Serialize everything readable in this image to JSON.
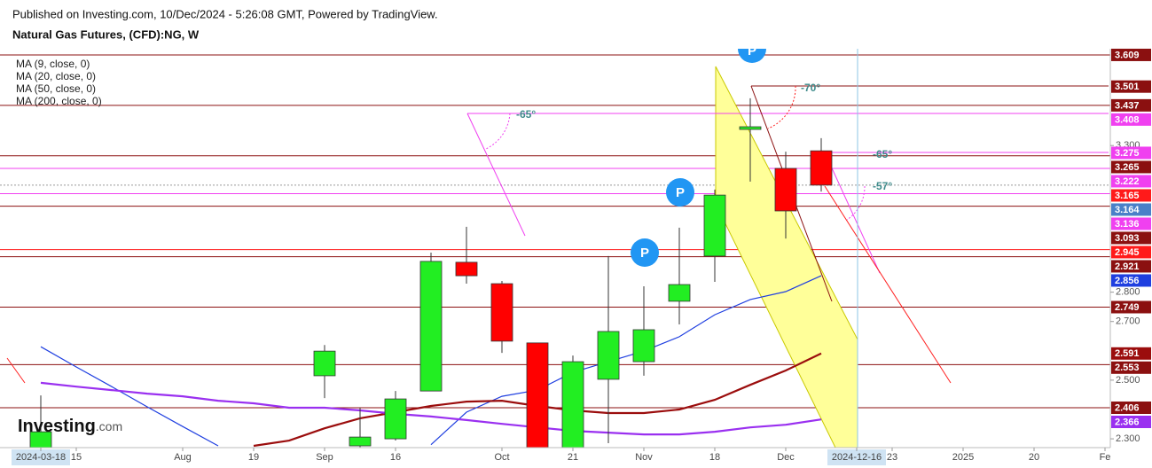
{
  "header": {
    "published": "Published on Investing.com, 10/Dec/2024 - 5:26:08 GMT, Powered by TradingView.",
    "symbol": "Natural Gas Futures, (CFD):NG, W"
  },
  "logo": {
    "name": "Investing",
    "suffix": ".com"
  },
  "annotations": [
    "-65°",
    "-70°",
    "-65°",
    "-57°"
  ],
  "markers": [
    "P",
    "P",
    "P"
  ],
  "chart_data": {
    "type": "candlestick",
    "categories": [
      "2024-03-18",
      "15",
      null,
      null,
      "Aug",
      null,
      "19",
      null,
      "Sep",
      null,
      "16",
      null,
      null,
      "Oct",
      null,
      "21",
      null,
      "Nov",
      null,
      "18",
      null,
      "Dec",
      null,
      "2024-12-16",
      "23",
      null,
      "2025",
      null,
      "20",
      null,
      "Fe"
    ],
    "highlight": [
      0,
      23
    ],
    "open": [
      2.25,
      null,
      null,
      null,
      null,
      null,
      null,
      null,
      2.515,
      2.276,
      2.3,
      2.463,
      2.902,
      2.829,
      2.627,
      2.27,
      2.503,
      2.563,
      2.769,
      2.923,
      3.355,
      3.222,
      3.282,
      null,
      null,
      null,
      null,
      null,
      null,
      null,
      null
    ],
    "high": [
      2.448,
      null,
      null,
      null,
      null,
      null,
      null,
      null,
      2.62,
      2.406,
      2.463,
      2.935,
      3.023,
      2.838,
      2.627,
      2.584,
      2.923,
      2.82,
      3.02,
      3.15,
      3.461,
      3.279,
      3.325,
      null,
      null,
      null,
      null,
      null,
      null,
      null,
      null
    ],
    "low": [
      2.24,
      null,
      null,
      null,
      null,
      null,
      null,
      null,
      2.439,
      2.25,
      2.294,
      2.463,
      2.829,
      2.593,
      2.24,
      2.25,
      2.285,
      2.515,
      2.69,
      2.835,
      3.177,
      2.983,
      3.143,
      null,
      null,
      null,
      null,
      null,
      null,
      null,
      null
    ],
    "close": [
      2.324,
      null,
      null,
      null,
      null,
      null,
      null,
      null,
      2.599,
      2.306,
      2.436,
      2.905,
      2.856,
      2.633,
      2.26,
      2.563,
      2.666,
      2.672,
      2.826,
      3.131,
      3.364,
      3.077,
      3.165,
      null,
      null,
      null,
      null,
      null,
      null,
      null,
      null
    ],
    "up_color": "#22ee22",
    "down_color": "#ff0000",
    "series": [
      {
        "name": "MA (9, close, 0)",
        "color": "#1f3fe0",
        "values": [
          2.614,
          2.545,
          2.478,
          2.409,
          2.342,
          2.276,
          null,
          null,
          null,
          null,
          null,
          2.28,
          2.391,
          2.445,
          2.466,
          2.527,
          2.563,
          2.599,
          2.648,
          2.723,
          2.775,
          2.802,
          2.856,
          null,
          null,
          null,
          null,
          null,
          null,
          null,
          null
        ]
      },
      {
        "name": "MA (20, close, 0)",
        "color": "#9b0d0d",
        "values": [
          null,
          null,
          null,
          null,
          null,
          null,
          2.276,
          2.294,
          2.336,
          2.37,
          2.391,
          2.412,
          2.427,
          2.43,
          2.412,
          2.397,
          2.388,
          2.388,
          2.4,
          2.433,
          2.484,
          2.533,
          2.591,
          null,
          null,
          null,
          null,
          null,
          null,
          null,
          null
        ]
      },
      {
        "name": "MA (50, close, 0)",
        "color": "#9a30f0",
        "values": [
          2.491,
          2.478,
          2.466,
          2.454,
          2.445,
          2.43,
          2.421,
          2.406,
          2.406,
          2.397,
          2.385,
          2.376,
          2.364,
          2.351,
          2.339,
          2.327,
          2.321,
          2.315,
          2.315,
          2.324,
          2.339,
          2.348,
          2.366,
          null,
          null,
          null,
          null,
          null,
          null,
          null,
          null
        ]
      },
      {
        "name": "MA (200, close, 0)",
        "color": "#2e7d32",
        "values": [
          null,
          null,
          null,
          null,
          null,
          null,
          null,
          null,
          null,
          null,
          null,
          null,
          null,
          null,
          null,
          null,
          null,
          null,
          null,
          null,
          null,
          null,
          null,
          null,
          null,
          null,
          null,
          null,
          null,
          null,
          null
        ]
      }
    ],
    "ylim": [
      2.27,
      3.63
    ],
    "yticks": [
      {
        "value": 2.3,
        "label": "2.300"
      },
      {
        "value": 2.5,
        "label": "2.500"
      },
      {
        "value": 2.7,
        "label": "2.700"
      },
      {
        "value": 2.8,
        "label": "2.800"
      },
      {
        "value": 3.3,
        "label": "3.300"
      }
    ],
    "levels": [
      {
        "value": 3.609,
        "color": "#8b1010",
        "line": "solid"
      },
      {
        "value": 3.501,
        "color": "#8b1010",
        "line": "none"
      },
      {
        "value": 3.437,
        "color": "#8b1010",
        "line": "solid"
      },
      {
        "value": 3.408,
        "color": "#f040f0",
        "line": "none"
      },
      {
        "value": 3.275,
        "color": "#f040f0",
        "line": "none"
      },
      {
        "value": 3.265,
        "color": "#8b1010",
        "line": "solid"
      },
      {
        "value": 3.222,
        "color": "#f040f0",
        "line": "solid"
      },
      {
        "value": 3.165,
        "color": "#ff1a1a",
        "line": "dotted"
      },
      {
        "value": 3.164,
        "color": "#4a80c8",
        "line": "none"
      },
      {
        "value": 3.136,
        "color": "#f040f0",
        "line": "solid"
      },
      {
        "value": 3.093,
        "color": "#8b1010",
        "line": "solid"
      },
      {
        "value": 2.945,
        "color": "#ff1a1a",
        "line": "solid"
      },
      {
        "value": 2.921,
        "color": "#8b1010",
        "line": "solid"
      },
      {
        "value": 2.856,
        "color": "#1f3fe0",
        "line": "none"
      },
      {
        "value": 2.749,
        "color": "#8b1010",
        "line": "solid"
      },
      {
        "value": 2.591,
        "color": "#9b0d0d",
        "line": "none"
      },
      {
        "value": 2.553,
        "color": "#8b1010",
        "line": "solid"
      },
      {
        "value": 2.406,
        "color": "#8b1010",
        "line": "solid"
      },
      {
        "value": 2.366,
        "color": "#9a30f0",
        "line": "none"
      }
    ]
  }
}
